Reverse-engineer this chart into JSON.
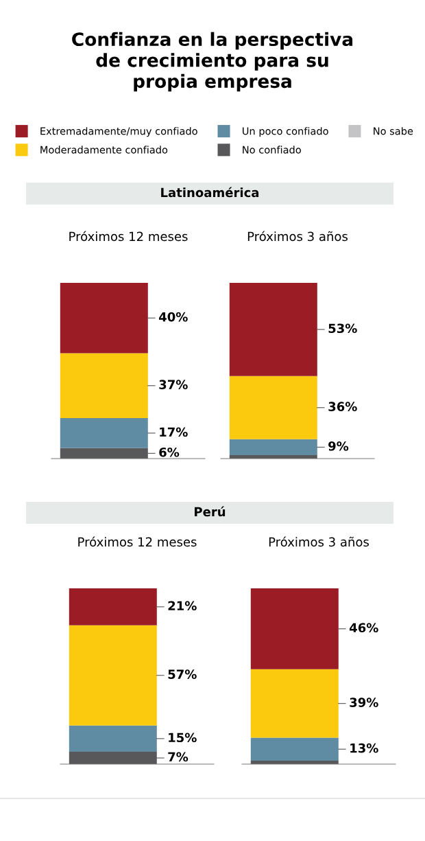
{
  "chart_data": [
    {
      "type": "other",
      "title": "Confianza en la perspectiva\nde crecimiento para su\npropia empresa"
    },
    {
      "type": "other",
      "legend": "top",
      "series": [
        {
          "name": "No sabe",
          "color": "#c4c4c6"
        },
        {
          "name": "No confiado",
          "color": "#58585a"
        },
        {
          "name": "Un poco confiado",
          "color": "#5f8ba3"
        },
        {
          "name": "Moderadamente confiado",
          "color": "#fbc90d"
        },
        {
          "name": "Extremadamente/muy confiado",
          "color": "#9b1c24"
        }
      ]
    },
    {
      "type": "other",
      "title": "Latinoamérica"
    },
    {
      "type": "bar",
      "stacked": true,
      "title": "Próximos 12 meses",
      "categories": [
        null
      ],
      "series": [
        {
          "color": "#58585a",
          "values": [
            6
          ],
          "value_labels": [
            "6%"
          ]
        },
        {
          "color": "#5f8ba3",
          "values": [
            17
          ],
          "value_labels": [
            "17%"
          ]
        },
        {
          "color": "#fbc90d",
          "values": [
            37
          ],
          "value_labels": [
            "37%"
          ]
        },
        {
          "color": "#9b1c24",
          "values": [
            40
          ],
          "value_labels": [
            "40%"
          ]
        }
      ]
    },
    {
      "type": "bar",
      "stacked": true,
      "title": "Próximos 3 años",
      "categories": [
        null
      ],
      "series": [
        {
          "color": "#58585a",
          "values": [
            2
          ],
          "value_labels": [
            null
          ]
        },
        {
          "color": "#5f8ba3",
          "values": [
            9
          ],
          "value_labels": [
            "9%"
          ]
        },
        {
          "color": "#fbc90d",
          "values": [
            36
          ],
          "value_labels": [
            "36%"
          ]
        },
        {
          "color": "#9b1c24",
          "values": [
            53
          ],
          "value_labels": [
            "53%"
          ]
        }
      ]
    },
    {
      "type": "other",
      "title": "Perú"
    },
    {
      "type": "bar",
      "stacked": true,
      "title": "Próximos 12 meses",
      "categories": [
        null
      ],
      "series": [
        {
          "color": "#58585a",
          "values": [
            7
          ],
          "value_labels": [
            "7%"
          ]
        },
        {
          "color": "#5f8ba3",
          "values": [
            15
          ],
          "value_labels": [
            "15%"
          ]
        },
        {
          "color": "#fbc90d",
          "values": [
            57
          ],
          "value_labels": [
            "57%"
          ]
        },
        {
          "color": "#9b1c24",
          "values": [
            21
          ],
          "value_labels": [
            "21%"
          ]
        }
      ]
    },
    {
      "type": "bar",
      "stacked": true,
      "title": "Próximos 3 años",
      "categories": [
        null
      ],
      "series": [
        {
          "color": "#58585a",
          "values": [
            2
          ],
          "value_labels": [
            null
          ]
        },
        {
          "color": "#5f8ba3",
          "values": [
            13
          ],
          "value_labels": [
            "13%"
          ]
        },
        {
          "color": "#fbc90d",
          "values": [
            39
          ],
          "value_labels": [
            "39%"
          ]
        },
        {
          "color": "#9b1c24",
          "values": [
            46
          ],
          "value_labels": [
            "46%"
          ]
        }
      ]
    }
  ]
}
